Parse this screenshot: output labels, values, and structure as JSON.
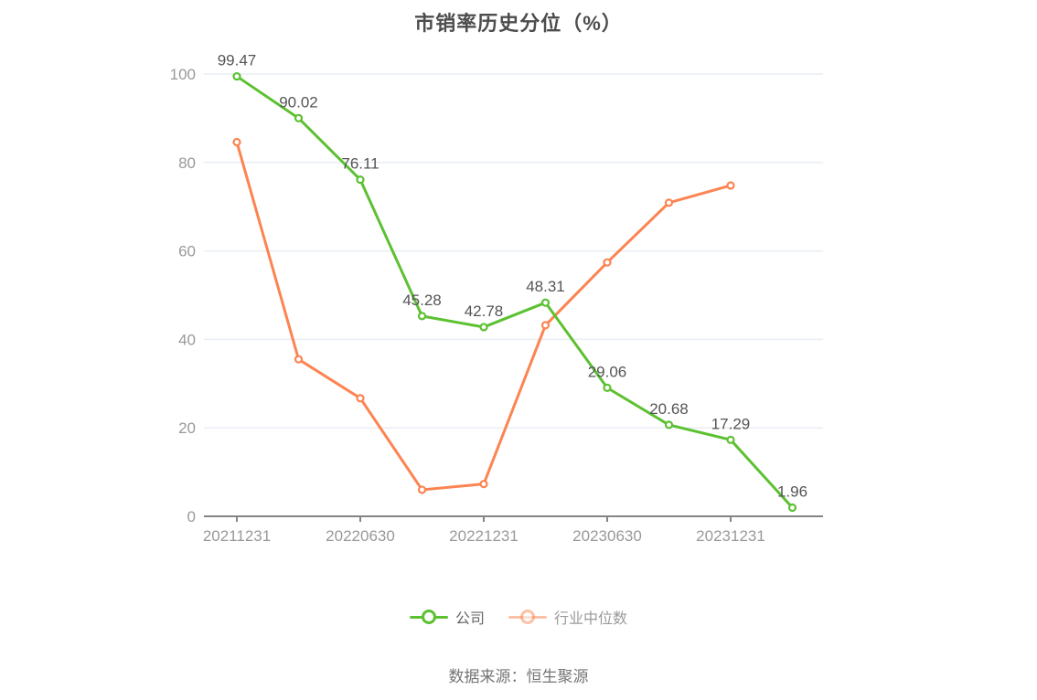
{
  "chart_data": {
    "type": "line",
    "title": "市销率历史分位（%）",
    "xlabel": "",
    "ylabel": "",
    "ylim": [
      0,
      100
    ],
    "y_ticks": [
      0,
      20,
      40,
      60,
      80,
      100
    ],
    "x_tick_labels": [
      "20211231",
      "20220630",
      "20221231",
      "20230630",
      "20231231"
    ],
    "grid": true,
    "legend_position": "bottom",
    "series": [
      {
        "key": "industry-median",
        "name": "行业中位数",
        "color": "#FC8452",
        "marker": "hollow-circle",
        "values": [
          84.6,
          35.5,
          26.7,
          6.0,
          7.3,
          43.2,
          57.4,
          70.9,
          74.8
        ],
        "point_labels": []
      },
      {
        "key": "company",
        "name": "公司",
        "color": "#5CC131",
        "marker": "hollow-circle",
        "values": [
          99.47,
          90.02,
          76.11,
          45.28,
          42.78,
          48.31,
          29.06,
          20.68,
          17.29,
          1.96
        ],
        "point_labels": [
          "99.47",
          "90.02",
          "76.11",
          "45.28",
          "42.78",
          "48.31",
          "29.06",
          "20.68",
          "17.29",
          "1.96"
        ]
      }
    ],
    "colors": {
      "grid_line": "#E9EDF4",
      "axis_line": "#848484",
      "axis_label": "#999999",
      "data_label": "#555555",
      "title": "#4d4d4d"
    }
  },
  "source_note": "数据来源：恒生聚源"
}
